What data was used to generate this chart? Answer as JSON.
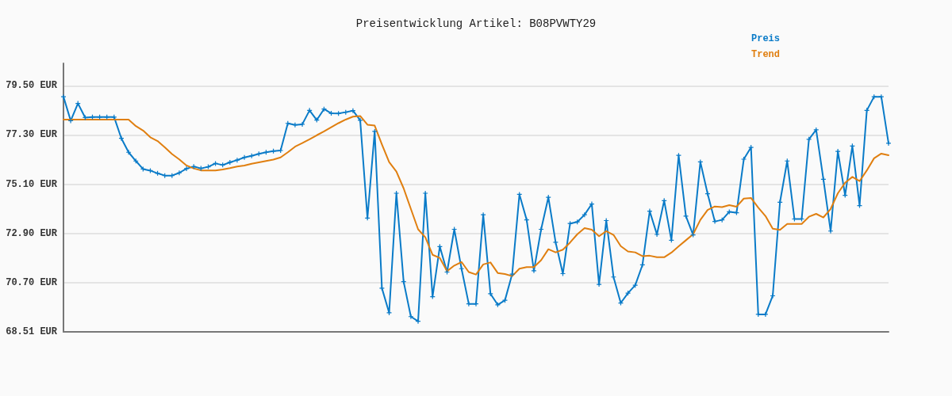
{
  "chart_data": {
    "type": "line",
    "title": "Preisentwicklung Artikel: B08PVWTY29",
    "categories": [
      null,
      null,
      null,
      null,
      null,
      null,
      null,
      null,
      null,
      null,
      null,
      null,
      null,
      null,
      null,
      null,
      null,
      null,
      null,
      null,
      null,
      null,
      null,
      null,
      null,
      null,
      null,
      null,
      null,
      null,
      null,
      null,
      null,
      null,
      null,
      null,
      null,
      null,
      null,
      null,
      null,
      null,
      null,
      null,
      null,
      null,
      null,
      null,
      null,
      null,
      null,
      null,
      null,
      null,
      null,
      null,
      null,
      null,
      null,
      null,
      null,
      null,
      null,
      null,
      null,
      null,
      null,
      null,
      null,
      null,
      null,
      null,
      null,
      null,
      null,
      null,
      null,
      null,
      null,
      null,
      null,
      null,
      null,
      null,
      null,
      null,
      null,
      null,
      null,
      null,
      null,
      null,
      null,
      null,
      null,
      null,
      null,
      null,
      null,
      null,
      null,
      null,
      null,
      null,
      null,
      null,
      null,
      null,
      null,
      null,
      null,
      null,
      null,
      null,
      null
    ],
    "series": [
      {
        "name": "Preis",
        "color": "#0a7bc8",
        "marker": "cross",
        "values": [
          79.01,
          77.94,
          78.71,
          78.08,
          78.1,
          78.1,
          78.1,
          78.1,
          77.15,
          76.53,
          76.14,
          75.78,
          75.71,
          75.59,
          75.49,
          75.49,
          75.61,
          75.8,
          75.89,
          75.81,
          75.88,
          76.03,
          75.96,
          76.08,
          76.18,
          76.3,
          76.37,
          76.46,
          76.53,
          76.58,
          76.61,
          77.82,
          77.75,
          77.78,
          78.4,
          77.97,
          78.46,
          78.27,
          78.26,
          78.32,
          78.39,
          77.96,
          73.59,
          77.46,
          70.46,
          69.36,
          74.7,
          70.75,
          69.19,
          68.98,
          74.7,
          70.08,
          72.32,
          71.18,
          73.09,
          71.33,
          69.76,
          69.76,
          73.74,
          70.21,
          69.72,
          69.92,
          71.09,
          74.65,
          73.51,
          71.24,
          73.09,
          74.52,
          72.51,
          71.11,
          73.35,
          73.42,
          73.74,
          74.22,
          70.63,
          73.48,
          70.96,
          69.8,
          70.24,
          70.59,
          71.5,
          73.9,
          72.86,
          74.37,
          72.6,
          76.39,
          73.68,
          72.84,
          76.1,
          74.68,
          73.44,
          73.51,
          73.87,
          73.83,
          76.22,
          76.75,
          69.29,
          69.29,
          70.12,
          74.3,
          76.14,
          73.55,
          73.55,
          77.11,
          77.53,
          75.32,
          73.01,
          76.57,
          74.61,
          76.81,
          74.15,
          78.4,
          79.01,
          79.01,
          76.93
        ]
      },
      {
        "name": "Trend",
        "color": "#e07f10",
        "marker": "none",
        "values": [
          77.99,
          77.99,
          77.99,
          77.99,
          77.99,
          77.99,
          77.99,
          77.99,
          77.99,
          77.99,
          77.7,
          77.5,
          77.2,
          77.03,
          76.75,
          76.45,
          76.21,
          75.94,
          75.81,
          75.72,
          75.72,
          75.72,
          75.76,
          75.82,
          75.89,
          75.94,
          76.02,
          76.08,
          76.14,
          76.2,
          76.3,
          76.53,
          76.78,
          76.94,
          77.11,
          77.29,
          77.46,
          77.65,
          77.83,
          77.99,
          78.12,
          78.15,
          77.76,
          77.72,
          76.88,
          76.09,
          75.67,
          74.92,
          74.0,
          73.09,
          72.73,
          71.95,
          71.81,
          71.22,
          71.47,
          71.63,
          71.18,
          71.07,
          71.52,
          71.61,
          71.14,
          71.09,
          71.0,
          71.33,
          71.4,
          71.4,
          71.71,
          72.2,
          72.06,
          72.18,
          72.5,
          72.87,
          73.14,
          73.07,
          72.78,
          73.01,
          72.84,
          72.34,
          72.1,
          72.06,
          71.89,
          71.91,
          71.84,
          71.84,
          72.05,
          72.33,
          72.6,
          72.87,
          73.51,
          73.95,
          74.11,
          74.08,
          74.17,
          74.1,
          74.46,
          74.49,
          74.06,
          73.68,
          73.12,
          73.06,
          73.33,
          73.33,
          73.33,
          73.65,
          73.78,
          73.62,
          74.0,
          74.7,
          75.17,
          75.43,
          75.24,
          75.72,
          76.26,
          76.47,
          76.4
        ]
      }
    ],
    "ylim": [
      68.51,
      80.5
    ],
    "yticks": [
      {
        "value": 68.51,
        "label": "68.51 EUR"
      },
      {
        "value": 70.7,
        "label": "70.70 EUR"
      },
      {
        "value": 72.9,
        "label": "72.90 EUR"
      },
      {
        "value": 75.1,
        "label": "75.10 EUR"
      },
      {
        "value": 77.3,
        "label": "77.30 EUR"
      },
      {
        "value": 79.5,
        "label": "79.50 EUR"
      }
    ],
    "grid": "y",
    "legend": "top right",
    "tick_labels": "y",
    "line_style": "solid"
  }
}
